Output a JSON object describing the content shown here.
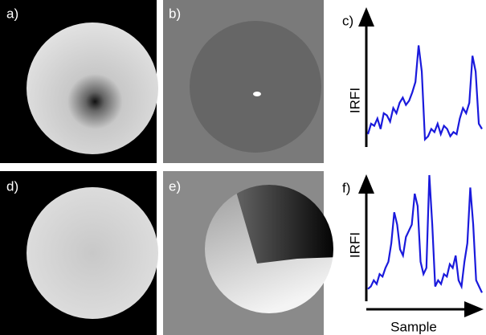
{
  "panels": [
    {
      "label": "a)"
    },
    {
      "label": "b)"
    },
    {
      "label": "d)"
    },
    {
      "label": "e)"
    }
  ],
  "chart_data": [
    {
      "type": "line",
      "label": "c)",
      "y_label": "IRFI",
      "color": "#1a1adc",
      "ylim": [
        0,
        100
      ],
      "values": [
        10,
        20,
        18,
        25,
        15,
        30,
        28,
        22,
        35,
        30,
        40,
        45,
        38,
        42,
        50,
        60,
        95,
        70,
        5,
        8,
        15,
        12,
        20,
        10,
        18,
        15,
        8,
        12,
        10,
        25,
        35,
        30,
        40,
        85,
        70,
        20,
        15
      ]
    },
    {
      "type": "line",
      "label": "f)",
      "y_label": "IRFI",
      "x_label": "Sample",
      "color": "#1a1adc",
      "ylim": [
        0,
        100
      ],
      "values": [
        8,
        10,
        15,
        12,
        20,
        18,
        25,
        30,
        45,
        70,
        60,
        40,
        35,
        50,
        55,
        60,
        85,
        75,
        30,
        20,
        25,
        100,
        60,
        10,
        15,
        12,
        20,
        18,
        28,
        25,
        35,
        15,
        10,
        30,
        45,
        90,
        60,
        15,
        10,
        5
      ]
    }
  ]
}
